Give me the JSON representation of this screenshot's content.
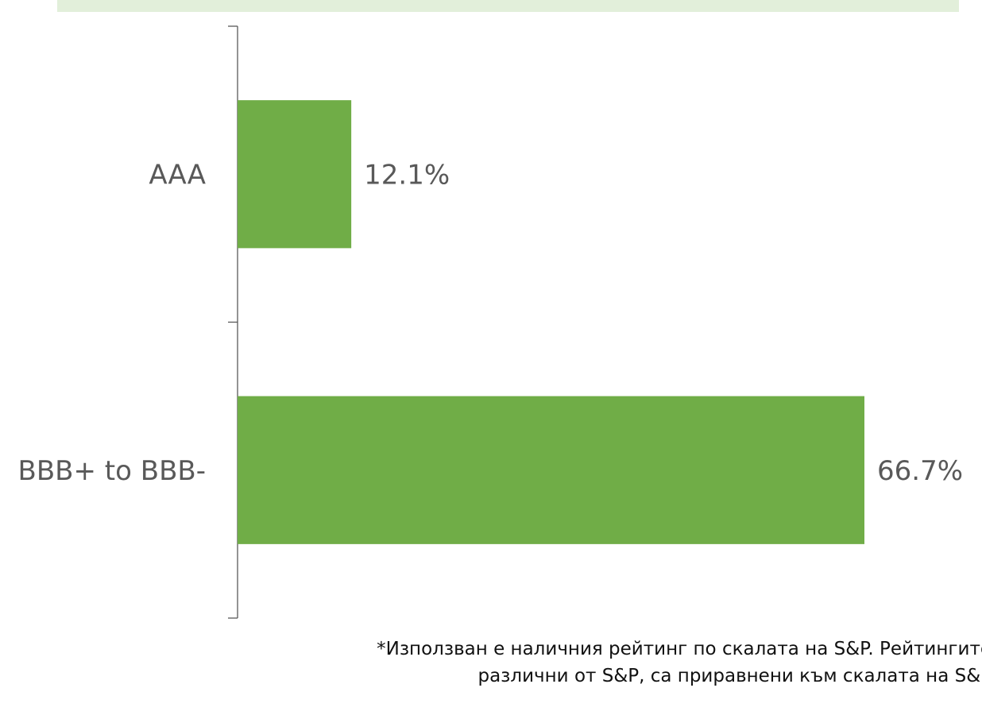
{
  "chart_data": {
    "type": "bar",
    "orientation": "horizontal",
    "categories": [
      "AAA",
      "BBB+ to BBB-"
    ],
    "values": [
      12.1,
      66.7
    ],
    "value_labels": [
      "12.1%",
      "66.7%"
    ],
    "xlim": [
      0,
      70
    ],
    "grid": false,
    "legend": "none"
  },
  "colors": {
    "bar": "#70ad47",
    "axis": "#595959",
    "text": "#595959",
    "band": "#e2efda"
  },
  "footnote": {
    "line1": "*Използван е наличния рейтинг по скалата на S&P. Рейтингите",
    "line2": "различни от S&P, са приравнени към скалата на S&P"
  }
}
